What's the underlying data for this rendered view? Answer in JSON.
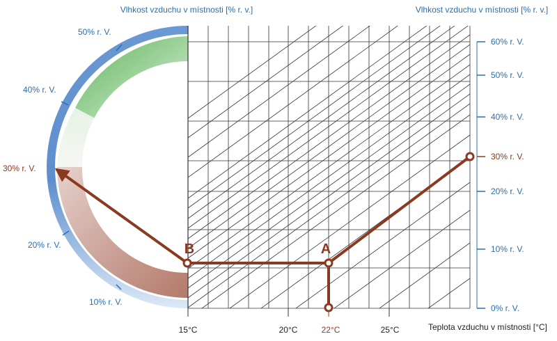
{
  "header": {
    "left_title": "Vlhkost vzduchu v místnosti [% r. v.]",
    "right_title": "Vlhkost vzduchu v místnosti [% r. v.]"
  },
  "ring_labels": [
    {
      "value": 10,
      "text": "10% r. V."
    },
    {
      "value": 20,
      "text": "20% r. V."
    },
    {
      "value": 30,
      "text": "30% r. V.",
      "highlight": true
    },
    {
      "value": 40,
      "text": "40% r. V."
    },
    {
      "value": 50,
      "text": "50% r. V."
    }
  ],
  "right_scale": [
    {
      "value": 0,
      "text": "0% r. V."
    },
    {
      "value": 10,
      "text": "10% r. V."
    },
    {
      "value": 20,
      "text": "20% r. V."
    },
    {
      "value": 30,
      "text": "30% r. V.",
      "highlight": true
    },
    {
      "value": 40,
      "text": "40% r. V."
    },
    {
      "value": 50,
      "text": "50% r. V."
    },
    {
      "value": 60,
      "text": "60% r. V."
    }
  ],
  "x_axis": {
    "ticks": [
      "15°C",
      "20°C",
      "22°C",
      "25°C"
    ],
    "label": "Teplota vzduchu v místnosti [°C]"
  },
  "points": {
    "a_label": "A",
    "b_label": "B"
  },
  "colors": {
    "blue": "#2a6fae",
    "brown": "#8b3a22",
    "green": "#6dbd6a",
    "ring_blue": "#6f9bd3"
  }
}
